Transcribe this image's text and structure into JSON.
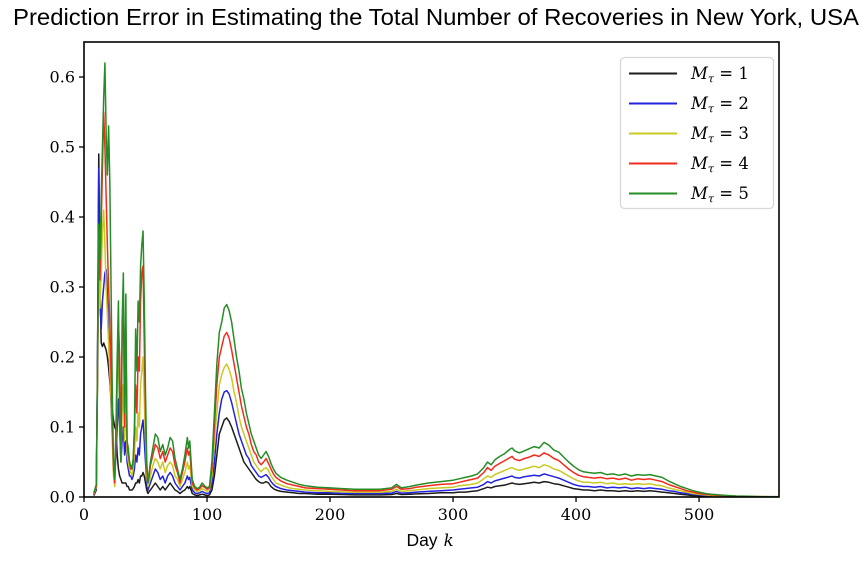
{
  "title": "Prediction Error in Estimating the Total Number of Recoveries in New York, USA",
  "xlabel": {
    "prefix": "Day",
    "variable": "k"
  },
  "axes": {
    "xticks": [
      0,
      100,
      200,
      300,
      400,
      500
    ],
    "ytick_labels": [
      "0.0",
      "0.1",
      "0.2",
      "0.3",
      "0.4",
      "0.5",
      "0.6"
    ],
    "yticks": [
      0.0,
      0.1,
      0.2,
      0.3,
      0.4,
      0.5,
      0.6
    ]
  },
  "legend": {
    "entries": [
      {
        "sym": "M",
        "sub": "τ",
        "eq": " = ",
        "val": "1"
      },
      {
        "sym": "M",
        "sub": "τ",
        "eq": " = ",
        "val": "2"
      },
      {
        "sym": "M",
        "sub": "τ",
        "eq": " = ",
        "val": "3"
      },
      {
        "sym": "M",
        "sub": "τ",
        "eq": " = ",
        "val": "4"
      },
      {
        "sym": "M",
        "sub": "τ",
        "eq": " = ",
        "val": "5"
      }
    ]
  },
  "colors": {
    "black": "#1c1c1c",
    "blue": "#2323dc",
    "yellow": "#c9c922",
    "red": "#f32b1d",
    "green": "#268c26",
    "legend_border": "#d8d8d8",
    "spine": "#000000"
  },
  "chart_data": {
    "type": "line",
    "title": "Prediction Error in Estimating the Total Number of Recoveries in New York, USA",
    "xlabel": "Day k",
    "ylabel": "",
    "xlim": [
      0,
      565
    ],
    "ylim": [
      0,
      0.65
    ],
    "grid": false,
    "legend_position": "upper right",
    "x": [
      8,
      10,
      11,
      12,
      13,
      14,
      15,
      16,
      17,
      18,
      19,
      20,
      21,
      22,
      23,
      24,
      25,
      26,
      27,
      28,
      29,
      30,
      31,
      32,
      33,
      34,
      35,
      36,
      37,
      38,
      39,
      40,
      41,
      42,
      43,
      44,
      45,
      46,
      47,
      48,
      49,
      50,
      51,
      52,
      53,
      54,
      56,
      58,
      60,
      62,
      64,
      66,
      68,
      70,
      72,
      74,
      76,
      78,
      80,
      82,
      84,
      85,
      86,
      88,
      90,
      92,
      94,
      96,
      98,
      100,
      102,
      104,
      106,
      108,
      110,
      112,
      114,
      116,
      118,
      120,
      122,
      124,
      126,
      128,
      130,
      132,
      134,
      136,
      138,
      140,
      142,
      144,
      146,
      148,
      150,
      152,
      154,
      156,
      160,
      165,
      170,
      175,
      180,
      190,
      200,
      210,
      220,
      230,
      240,
      250,
      254,
      258,
      265,
      270,
      280,
      290,
      300,
      305,
      310,
      315,
      320,
      325,
      328,
      331,
      334,
      338,
      342,
      346,
      348,
      350,
      354,
      358,
      362,
      366,
      370,
      374,
      378,
      382,
      386,
      390,
      394,
      398,
      402,
      406,
      410,
      415,
      420,
      425,
      430,
      435,
      440,
      445,
      450,
      455,
      460,
      465,
      470,
      475,
      480,
      485,
      490,
      495,
      500,
      505,
      510,
      520,
      530,
      540,
      550,
      560,
      564
    ],
    "series": [
      {
        "name": "Mτ = 1",
        "color": "#1c1c1c",
        "values": [
          0.002,
          0.01,
          0.2,
          0.49,
          0.3,
          0.22,
          0.215,
          0.22,
          0.215,
          0.21,
          0.2,
          0.185,
          0.165,
          0.145,
          0.125,
          0.11,
          0.1,
          0.095,
          0.06,
          0.04,
          0.03,
          0.025,
          0.02,
          0.02,
          0.02,
          0.02,
          0.015,
          0.015,
          0.01,
          0.01,
          0.01,
          0.012,
          0.015,
          0.02,
          0.02,
          0.025,
          0.02,
          0.03,
          0.03,
          0.035,
          0.03,
          0.02,
          0.01,
          0.005,
          0.008,
          0.01,
          0.015,
          0.02,
          0.015,
          0.01,
          0.015,
          0.01,
          0.015,
          0.02,
          0.015,
          0.01,
          0.008,
          0.005,
          0.008,
          0.01,
          0.015,
          0.012,
          0.015,
          0.005,
          0.003,
          0.002,
          0.003,
          0.004,
          0.003,
          0.002,
          0.003,
          0.01,
          0.03,
          0.06,
          0.09,
          0.1,
          0.11,
          0.113,
          0.108,
          0.1,
          0.09,
          0.08,
          0.07,
          0.06,
          0.05,
          0.045,
          0.04,
          0.035,
          0.03,
          0.025,
          0.022,
          0.02,
          0.02,
          0.022,
          0.02,
          0.015,
          0.012,
          0.01,
          0.008,
          0.007,
          0.006,
          0.005,
          0.005,
          0.004,
          0.004,
          0.0035,
          0.003,
          0.003,
          0.003,
          0.0035,
          0.005,
          0.0035,
          0.004,
          0.0045,
          0.005,
          0.006,
          0.006,
          0.007,
          0.007,
          0.008,
          0.009,
          0.012,
          0.014,
          0.013,
          0.015,
          0.016,
          0.017,
          0.019,
          0.02,
          0.019,
          0.018,
          0.019,
          0.02,
          0.021,
          0.02,
          0.022,
          0.021,
          0.019,
          0.018,
          0.016,
          0.014,
          0.012,
          0.011,
          0.01,
          0.01,
          0.009,
          0.01,
          0.009,
          0.009,
          0.008,
          0.009,
          0.008,
          0.009,
          0.008,
          0.009,
          0.008,
          0.007,
          0.006,
          0.005,
          0.004,
          0.003,
          0.002,
          0.002,
          0.001,
          0.001,
          0.0005,
          0.0003,
          0.0002,
          0.0001,
          0.0001,
          0.0001
        ]
      },
      {
        "name": "Mτ = 2",
        "color": "#2323dc",
        "values": [
          0.003,
          0.012,
          0.19,
          0.47,
          0.28,
          0.24,
          0.28,
          0.3,
          0.32,
          0.325,
          0.29,
          0.23,
          0.18,
          0.13,
          0.09,
          0.05,
          0.03,
          0.06,
          0.1,
          0.14,
          0.1,
          0.05,
          0.08,
          0.1,
          0.06,
          0.08,
          0.05,
          0.04,
          0.03,
          0.03,
          0.025,
          0.03,
          0.04,
          0.06,
          0.05,
          0.07,
          0.06,
          0.09,
          0.1,
          0.11,
          0.08,
          0.05,
          0.02,
          0.01,
          0.015,
          0.02,
          0.03,
          0.04,
          0.035,
          0.025,
          0.03,
          0.02,
          0.03,
          0.035,
          0.03,
          0.02,
          0.015,
          0.01,
          0.015,
          0.02,
          0.03,
          0.025,
          0.028,
          0.01,
          0.006,
          0.005,
          0.006,
          0.008,
          0.006,
          0.005,
          0.006,
          0.02,
          0.05,
          0.09,
          0.12,
          0.14,
          0.15,
          0.152,
          0.147,
          0.135,
          0.12,
          0.105,
          0.09,
          0.08,
          0.07,
          0.06,
          0.055,
          0.045,
          0.04,
          0.035,
          0.03,
          0.028,
          0.03,
          0.032,
          0.028,
          0.022,
          0.018,
          0.015,
          0.012,
          0.01,
          0.009,
          0.008,
          0.007,
          0.006,
          0.006,
          0.005,
          0.005,
          0.005,
          0.005,
          0.0055,
          0.008,
          0.0055,
          0.006,
          0.007,
          0.008,
          0.009,
          0.01,
          0.011,
          0.012,
          0.013,
          0.014,
          0.018,
          0.022,
          0.02,
          0.023,
          0.025,
          0.027,
          0.029,
          0.03,
          0.028,
          0.027,
          0.029,
          0.03,
          0.031,
          0.03,
          0.033,
          0.031,
          0.029,
          0.027,
          0.024,
          0.021,
          0.018,
          0.016,
          0.015,
          0.015,
          0.014,
          0.015,
          0.013,
          0.014,
          0.013,
          0.014,
          0.012,
          0.013,
          0.012,
          0.013,
          0.012,
          0.011,
          0.009,
          0.008,
          0.006,
          0.005,
          0.004,
          0.003,
          0.002,
          0.0015,
          0.001,
          0.0005,
          0.0004,
          0.0002,
          0.0002,
          0.0002
        ]
      },
      {
        "name": "Mτ = 3",
        "color": "#c9c922",
        "values": [
          0.004,
          0.014,
          0.16,
          0.34,
          0.27,
          0.32,
          0.38,
          0.41,
          0.36,
          0.3,
          0.26,
          0.22,
          0.18,
          0.14,
          0.08,
          0.03,
          0.015,
          0.08,
          0.15,
          0.2,
          0.15,
          0.05,
          0.12,
          0.16,
          0.08,
          0.14,
          0.06,
          0.05,
          0.04,
          0.035,
          0.03,
          0.04,
          0.06,
          0.1,
          0.08,
          0.12,
          0.1,
          0.16,
          0.18,
          0.2,
          0.14,
          0.08,
          0.03,
          0.015,
          0.02,
          0.03,
          0.045,
          0.055,
          0.05,
          0.04,
          0.05,
          0.035,
          0.045,
          0.05,
          0.045,
          0.03,
          0.025,
          0.015,
          0.025,
          0.035,
          0.05,
          0.04,
          0.045,
          0.015,
          0.01,
          0.008,
          0.009,
          0.012,
          0.01,
          0.008,
          0.01,
          0.03,
          0.08,
          0.12,
          0.16,
          0.175,
          0.185,
          0.19,
          0.182,
          0.17,
          0.15,
          0.135,
          0.115,
          0.1,
          0.09,
          0.08,
          0.07,
          0.06,
          0.05,
          0.045,
          0.04,
          0.036,
          0.04,
          0.042,
          0.038,
          0.03,
          0.025,
          0.02,
          0.017,
          0.014,
          0.012,
          0.011,
          0.01,
          0.009,
          0.008,
          0.0075,
          0.007,
          0.007,
          0.007,
          0.008,
          0.011,
          0.008,
          0.009,
          0.01,
          0.012,
          0.013,
          0.014,
          0.016,
          0.017,
          0.018,
          0.02,
          0.026,
          0.03,
          0.028,
          0.032,
          0.035,
          0.038,
          0.041,
          0.042,
          0.04,
          0.038,
          0.04,
          0.042,
          0.044,
          0.042,
          0.046,
          0.044,
          0.04,
          0.038,
          0.034,
          0.03,
          0.026,
          0.023,
          0.021,
          0.021,
          0.02,
          0.021,
          0.019,
          0.02,
          0.018,
          0.019,
          0.018,
          0.019,
          0.018,
          0.019,
          0.017,
          0.016,
          0.013,
          0.011,
          0.009,
          0.007,
          0.005,
          0.004,
          0.003,
          0.002,
          0.0015,
          0.001,
          0.0006,
          0.0003,
          0.0003,
          0.0003
        ]
      },
      {
        "name": "Mτ = 4",
        "color": "#f32b1d",
        "values": [
          0.005,
          0.016,
          0.17,
          0.37,
          0.31,
          0.39,
          0.47,
          0.55,
          0.5,
          0.43,
          0.36,
          0.3,
          0.25,
          0.18,
          0.1,
          0.04,
          0.02,
          0.09,
          0.18,
          0.25,
          0.2,
          0.05,
          0.22,
          0.28,
          0.1,
          0.24,
          0.08,
          0.06,
          0.05,
          0.04,
          0.04,
          0.05,
          0.09,
          0.16,
          0.12,
          0.2,
          0.18,
          0.28,
          0.32,
          0.33,
          0.22,
          0.12,
          0.04,
          0.02,
          0.03,
          0.045,
          0.06,
          0.075,
          0.07,
          0.055,
          0.065,
          0.05,
          0.06,
          0.07,
          0.065,
          0.045,
          0.035,
          0.02,
          0.035,
          0.05,
          0.07,
          0.06,
          0.065,
          0.02,
          0.013,
          0.01,
          0.012,
          0.016,
          0.014,
          0.011,
          0.013,
          0.04,
          0.1,
          0.16,
          0.2,
          0.215,
          0.23,
          0.235,
          0.227,
          0.21,
          0.19,
          0.17,
          0.15,
          0.13,
          0.115,
          0.1,
          0.09,
          0.075,
          0.065,
          0.06,
          0.05,
          0.046,
          0.05,
          0.055,
          0.048,
          0.04,
          0.033,
          0.028,
          0.023,
          0.019,
          0.017,
          0.015,
          0.013,
          0.012,
          0.011,
          0.01,
          0.009,
          0.009,
          0.009,
          0.011,
          0.015,
          0.011,
          0.012,
          0.014,
          0.016,
          0.018,
          0.019,
          0.021,
          0.023,
          0.025,
          0.027,
          0.035,
          0.042,
          0.038,
          0.044,
          0.048,
          0.052,
          0.056,
          0.058,
          0.054,
          0.052,
          0.055,
          0.057,
          0.06,
          0.058,
          0.063,
          0.06,
          0.055,
          0.052,
          0.046,
          0.04,
          0.035,
          0.031,
          0.029,
          0.028,
          0.027,
          0.028,
          0.026,
          0.027,
          0.025,
          0.027,
          0.024,
          0.026,
          0.025,
          0.026,
          0.024,
          0.022,
          0.018,
          0.015,
          0.012,
          0.009,
          0.007,
          0.005,
          0.004,
          0.003,
          0.002,
          0.0012,
          0.0008,
          0.0005,
          0.0004,
          0.0004
        ]
      },
      {
        "name": "Mτ = 5",
        "color": "#268c26",
        "values": [
          0.006,
          0.018,
          0.18,
          0.39,
          0.34,
          0.43,
          0.5,
          0.57,
          0.62,
          0.52,
          0.46,
          0.53,
          0.45,
          0.3,
          0.15,
          0.05,
          0.025,
          0.1,
          0.2,
          0.28,
          0.1,
          0.05,
          0.25,
          0.32,
          0.12,
          0.29,
          0.08,
          0.07,
          0.05,
          0.045,
          0.04,
          0.055,
          0.1,
          0.24,
          0.18,
          0.28,
          0.25,
          0.33,
          0.36,
          0.38,
          0.28,
          0.15,
          0.05,
          0.02,
          0.035,
          0.05,
          0.07,
          0.09,
          0.085,
          0.065,
          0.075,
          0.06,
          0.07,
          0.085,
          0.08,
          0.055,
          0.04,
          0.025,
          0.04,
          0.06,
          0.085,
          0.07,
          0.08,
          0.025,
          0.015,
          0.012,
          0.014,
          0.02,
          0.016,
          0.013,
          0.015,
          0.05,
          0.12,
          0.19,
          0.235,
          0.25,
          0.27,
          0.275,
          0.266,
          0.25,
          0.225,
          0.2,
          0.18,
          0.155,
          0.14,
          0.12,
          0.105,
          0.09,
          0.08,
          0.07,
          0.06,
          0.055,
          0.06,
          0.065,
          0.058,
          0.048,
          0.04,
          0.034,
          0.028,
          0.024,
          0.021,
          0.018,
          0.016,
          0.014,
          0.013,
          0.012,
          0.011,
          0.011,
          0.011,
          0.013,
          0.018,
          0.013,
          0.015,
          0.017,
          0.02,
          0.022,
          0.024,
          0.026,
          0.028,
          0.03,
          0.033,
          0.042,
          0.05,
          0.046,
          0.053,
          0.058,
          0.062,
          0.068,
          0.07,
          0.066,
          0.063,
          0.066,
          0.069,
          0.072,
          0.07,
          0.078,
          0.074,
          0.067,
          0.064,
          0.057,
          0.05,
          0.044,
          0.039,
          0.036,
          0.035,
          0.034,
          0.035,
          0.032,
          0.033,
          0.031,
          0.033,
          0.03,
          0.032,
          0.031,
          0.032,
          0.03,
          0.028,
          0.023,
          0.019,
          0.015,
          0.012,
          0.009,
          0.007,
          0.005,
          0.004,
          0.0025,
          0.0015,
          0.001,
          0.0006,
          0.0005,
          0.0005
        ]
      }
    ]
  }
}
